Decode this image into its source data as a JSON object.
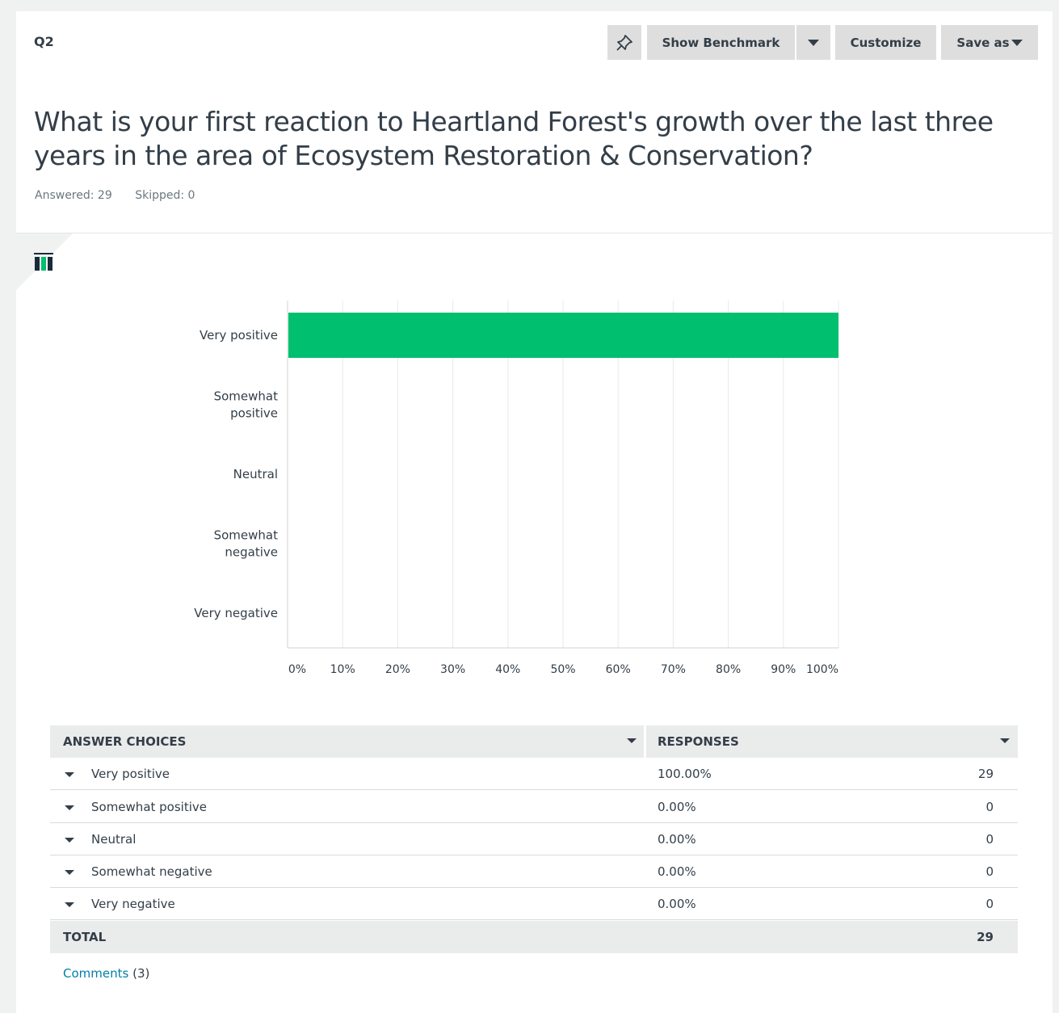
{
  "question": {
    "label": "Q2",
    "text": "What is your first reaction to Heartland Forest's growth over the last three years in the area of Ecosystem Restoration & Conservation?",
    "answered_label": "Answered: 29",
    "skipped_label": "Skipped: 0"
  },
  "toolbar": {
    "pin_icon": "pin-icon",
    "show_benchmark_label": "Show Benchmark",
    "customize_label": "Customize",
    "save_as_label": "Save as"
  },
  "chart_data": {
    "type": "bar",
    "orientation": "horizontal",
    "categories": [
      "Very positive",
      "Somewhat positive",
      "Neutral",
      "Somewhat negative",
      "Very negative"
    ],
    "category_lines": [
      [
        "Very positive"
      ],
      [
        "Somewhat",
        "positive"
      ],
      [
        "Neutral"
      ],
      [
        "Somewhat",
        "negative"
      ],
      [
        "Very negative"
      ]
    ],
    "values": [
      100,
      0,
      0,
      0,
      0
    ],
    "xlim": [
      0,
      100
    ],
    "xticks": [
      "0%",
      "10%",
      "20%",
      "30%",
      "40%",
      "50%",
      "60%",
      "70%",
      "80%",
      "90%",
      "100%"
    ],
    "grid": true,
    "bar_color": "#00bf6f"
  },
  "table": {
    "col_choices": "ANSWER CHOICES",
    "col_responses": "RESPONSES",
    "rows": [
      {
        "choice": "Very positive",
        "percent": "100.00%",
        "count": "29"
      },
      {
        "choice": "Somewhat positive",
        "percent": "0.00%",
        "count": "0"
      },
      {
        "choice": "Neutral",
        "percent": "0.00%",
        "count": "0"
      },
      {
        "choice": "Somewhat negative",
        "percent": "0.00%",
        "count": "0"
      },
      {
        "choice": "Very negative",
        "percent": "0.00%",
        "count": "0"
      }
    ],
    "total_label": "TOTAL",
    "total_count": "29"
  },
  "comments": {
    "link_label": "Comments",
    "count_label": "(3)"
  }
}
